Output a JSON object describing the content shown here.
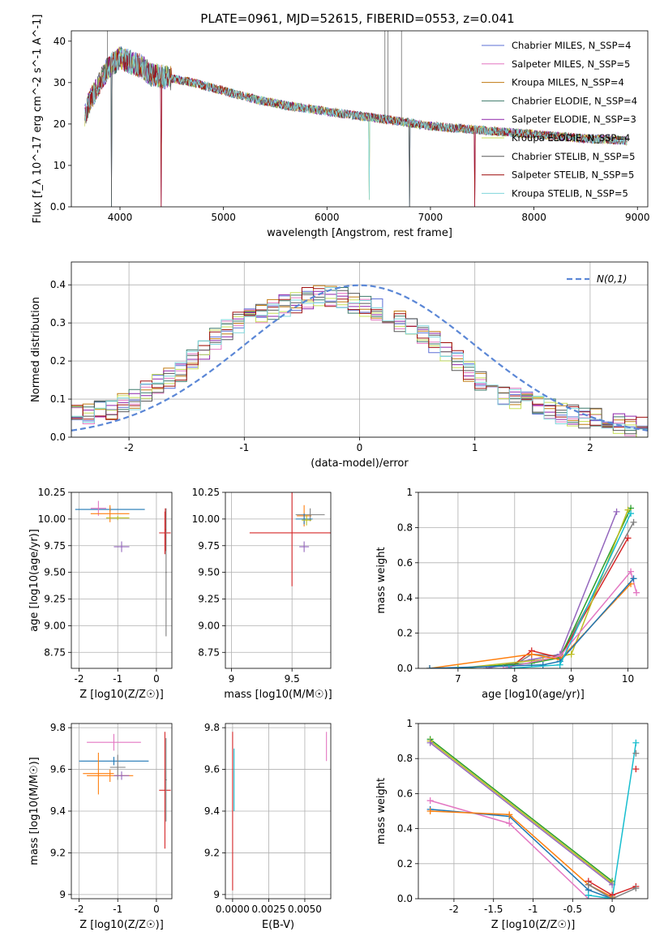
{
  "figure": {
    "title": "PLATE=0961, MJD=52615, FIBERID=0553, z=0.041"
  },
  "colors": {
    "chabrier_miles": "#5b6fd6",
    "salpeter_miles": "#e377c2",
    "kroupa_miles": "#c07a10",
    "chabrier_elodie": "#3d7a6a",
    "salpeter_elodie": "#8e24aa",
    "kroupa_elodie": "#c8e05a",
    "chabrier_stelib": "#595959",
    "salpeter_stelib": "#a01010",
    "kroupa_stelib": "#7fd6dc",
    "normal_curve": "#5b87d6",
    "m_blue": "#1f77b4",
    "m_orange": "#ff7f0e",
    "m_green": "#2ca02c",
    "m_red": "#d62728",
    "m_purple": "#9467bd",
    "m_pink": "#e377c2",
    "m_gray": "#7f7f7f",
    "m_olive": "#bcbd22",
    "m_cyan": "#17becf"
  },
  "chart_data": [
    {
      "id": "spectrum",
      "type": "line",
      "title": "PLATE=0961, MJD=52615, FIBERID=0553, z=0.041",
      "xlabel": "wavelength [Angstrom, rest frame]",
      "ylabel": "Flux [f_λ 10^-17 erg cm^-2 s^-1 A^-1]",
      "xlim": [
        3530,
        9100
      ],
      "ylim": [
        0,
        42.5
      ],
      "xticks": [
        4000,
        5000,
        6000,
        7000,
        8000,
        9000
      ],
      "yticks": [
        0,
        10,
        20,
        30,
        40
      ],
      "legend_position": "top-right",
      "legend": [
        "Chabrier MILES, N_SSP=4",
        "Salpeter MILES, N_SSP=5",
        "Kroupa MILES, N_SSP=4",
        "Chabrier ELODIE, N_SSP=4",
        "Salpeter ELODIE, N_SSP=3",
        "Kroupa ELODIE, N_SSP=4",
        "Chabrier STELIB, N_SSP=5",
        "Salpeter STELIB, N_SSP=5",
        "Kroupa STELIB, N_SSP=5"
      ],
      "continuum": [
        [
          3660,
          22
        ],
        [
          3700,
          25
        ],
        [
          3800,
          30
        ],
        [
          3900,
          34
        ],
        [
          4000,
          36
        ],
        [
          4100,
          35
        ],
        [
          4200,
          34
        ],
        [
          4300,
          32
        ],
        [
          4500,
          31
        ],
        [
          4700,
          30
        ],
        [
          5000,
          28
        ],
        [
          5300,
          26
        ],
        [
          5600,
          24.5
        ],
        [
          6000,
          23
        ],
        [
          6300,
          22
        ],
        [
          6600,
          21
        ],
        [
          7000,
          19.5
        ],
        [
          7500,
          18.5
        ],
        [
          8000,
          17.5
        ],
        [
          8500,
          16.5
        ],
        [
          8900,
          16
        ]
      ],
      "dropouts": [
        [
          3920,
          0
        ],
        [
          4400,
          0
        ],
        [
          6410,
          1.7
        ],
        [
          6800,
          0
        ],
        [
          7430,
          0
        ]
      ],
      "spikes": [
        [
          6560,
          42.5
        ],
        [
          6590,
          42.5
        ],
        [
          6720,
          42.5
        ],
        [
          3880,
          42.5
        ]
      ],
      "grid": false
    },
    {
      "id": "residuals",
      "type": "line",
      "xlabel": "(data-model)/error",
      "ylabel": "Normed distribution",
      "xlim": [
        -2.5,
        2.5
      ],
      "ylim": [
        0,
        0.46
      ],
      "xticks": [
        -2,
        -1,
        0,
        1,
        2
      ],
      "yticks": [
        0.0,
        0.1,
        0.2,
        0.3,
        0.4
      ],
      "legend_position": "top-right",
      "legend": [
        "N(0,1)"
      ],
      "normal_curve": {
        "mean": 0,
        "sigma": 1
      },
      "histogram_envelope": [
        [
          -2.5,
          0.06
        ],
        [
          -2.2,
          0.07
        ],
        [
          -2.0,
          0.09
        ],
        [
          -1.8,
          0.13
        ],
        [
          -1.6,
          0.16
        ],
        [
          -1.4,
          0.22
        ],
        [
          -1.2,
          0.27
        ],
        [
          -1.0,
          0.31
        ],
        [
          -0.8,
          0.33
        ],
        [
          -0.6,
          0.35
        ],
        [
          -0.4,
          0.37
        ],
        [
          -0.2,
          0.37
        ],
        [
          0.0,
          0.35
        ],
        [
          0.2,
          0.33
        ],
        [
          0.4,
          0.3
        ],
        [
          0.6,
          0.26
        ],
        [
          0.8,
          0.21
        ],
        [
          1.0,
          0.16
        ],
        [
          1.2,
          0.12
        ],
        [
          1.4,
          0.1
        ],
        [
          1.6,
          0.08
        ],
        [
          1.8,
          0.06
        ],
        [
          2.0,
          0.05
        ],
        [
          2.2,
          0.04
        ],
        [
          2.5,
          0.02
        ]
      ],
      "grid": true
    },
    {
      "id": "age_vs_Z",
      "type": "scatter",
      "xlabel": "Z [log10(Z/Z☉)]",
      "ylabel": "age [log10(age/yr)]",
      "xlim": [
        -2.2,
        0.4
      ],
      "ylim": [
        8.6,
        10.25
      ],
      "xticks": [
        -2,
        -1,
        0
      ],
      "yticks": [
        8.75,
        9.0,
        9.25,
        9.5,
        9.75,
        10.0,
        10.25
      ],
      "points": [
        {
          "x": -1.2,
          "y": 10.09,
          "xerr": 0.9,
          "yerr": 0.02,
          "color": "m_blue"
        },
        {
          "x": -1.5,
          "y": 10.1,
          "xerr": 0.2,
          "yerr": 0.07,
          "color": "m_pink"
        },
        {
          "x": -1.2,
          "y": 10.05,
          "xerr": 0.5,
          "yerr": 0.08,
          "color": "m_orange"
        },
        {
          "x": -1.0,
          "y": 10.01,
          "xerr": 0.3,
          "yerr": 0.02,
          "color": "m_olive"
        },
        {
          "x": -0.9,
          "y": 9.74,
          "xerr": 0.2,
          "yerr": 0.05,
          "color": "m_purple"
        },
        {
          "x": 0.22,
          "y": 9.87,
          "xerr": 0.15,
          "yerr": 0.2,
          "color": "m_red"
        },
        {
          "x": 0.25,
          "y": 9.5,
          "xerr": 0.02,
          "yerr": 0.6,
          "color": "m_gray"
        },
        {
          "x": 0.23,
          "y": 9.9,
          "xerr": 0.02,
          "yerr": 0.2,
          "color": "m_red"
        }
      ],
      "grid": true
    },
    {
      "id": "age_vs_mass",
      "type": "scatter",
      "xlabel": "mass [log10(M/M☉)]",
      "ylabel": "",
      "xlim": [
        8.95,
        9.82
      ],
      "ylim": [
        8.6,
        10.25
      ],
      "xticks": [
        9.0,
        9.5
      ],
      "yticks": [
        8.75,
        9.0,
        9.25,
        9.5,
        9.75,
        10.0,
        10.25
      ],
      "points": [
        {
          "x": 9.5,
          "y": 9.87,
          "xerr": 0.35,
          "yerr": 0.5,
          "color": "m_red"
        },
        {
          "x": 9.6,
          "y": 10.03,
          "xerr": 0.06,
          "yerr": 0.1,
          "color": "m_orange"
        },
        {
          "x": 9.65,
          "y": 10.04,
          "xerr": 0.12,
          "yerr": 0.06,
          "color": "m_gray"
        },
        {
          "x": 9.6,
          "y": 10.0,
          "xerr": 0.07,
          "yerr": 0.05,
          "color": "m_blue"
        },
        {
          "x": 9.6,
          "y": 9.74,
          "xerr": 0.04,
          "yerr": 0.05,
          "color": "m_purple"
        },
        {
          "x": 9.62,
          "y": 9.99,
          "xerr": 0.04,
          "yerr": 0.05,
          "color": "m_olive"
        }
      ],
      "grid": true
    },
    {
      "id": "massweight_vs_age",
      "type": "line",
      "xlabel": "age [log10(age/yr)]",
      "ylabel": "mass weight",
      "xlim": [
        6.3,
        10.35
      ],
      "ylim": [
        0,
        1.0
      ],
      "xticks": [
        7,
        8,
        9,
        10
      ],
      "yticks": [
        0.0,
        0.2,
        0.4,
        0.6,
        0.8,
        1.0
      ],
      "series": [
        {
          "color": "m_purple",
          "x": [
            7.5,
            8.3,
            8.8,
            9.8
          ],
          "y": [
            0.0,
            0.05,
            0.08,
            0.89
          ]
        },
        {
          "color": "m_gray",
          "x": [
            7.9,
            8.3,
            8.8,
            10.1
          ],
          "y": [
            0.0,
            0.08,
            0.07,
            0.83
          ]
        },
        {
          "color": "m_red",
          "x": [
            7.9,
            8.3,
            8.8,
            10.0
          ],
          "y": [
            0.0,
            0.1,
            0.06,
            0.74
          ]
        },
        {
          "color": "m_green",
          "x": [
            7.0,
            8.3,
            8.8,
            10.05
          ],
          "y": [
            0.0,
            0.03,
            0.06,
            0.91
          ]
        },
        {
          "color": "m_olive",
          "x": [
            7.0,
            8.5,
            9.0,
            10.0
          ],
          "y": [
            0.0,
            0.05,
            0.08,
            0.9
          ]
        },
        {
          "color": "m_pink",
          "x": [
            7.8,
            8.8,
            10.05,
            10.15
          ],
          "y": [
            0.0,
            0.07,
            0.55,
            0.43
          ]
        },
        {
          "color": "m_orange",
          "x": [
            6.5,
            8.3,
            8.8,
            10.05
          ],
          "y": [
            0.0,
            0.08,
            0.05,
            0.48
          ]
        },
        {
          "color": "m_blue",
          "x": [
            6.5,
            8.5,
            8.8,
            10.1
          ],
          "y": [
            0.0,
            0.02,
            0.04,
            0.51
          ]
        },
        {
          "color": "m_cyan",
          "x": [
            7.9,
            8.8,
            10.05
          ],
          "y": [
            0.0,
            0.02,
            0.88
          ]
        }
      ],
      "grid": true
    },
    {
      "id": "mass_vs_Z",
      "type": "scatter",
      "xlabel": "Z [log10(Z/Z☉)]",
      "ylabel": "mass [log10(M/M☉)]",
      "xlim": [
        -2.2,
        0.4
      ],
      "ylim": [
        8.98,
        9.82
      ],
      "xticks": [
        -2,
        -1,
        0
      ],
      "yticks": [
        9.0,
        9.2,
        9.4,
        9.6,
        9.8
      ],
      "points": [
        {
          "x": -1.1,
          "y": 9.64,
          "xerr": 0.9,
          "yerr": 0.02,
          "color": "m_blue"
        },
        {
          "x": -1.1,
          "y": 9.73,
          "xerr": 0.7,
          "yerr": 0.04,
          "color": "m_pink"
        },
        {
          "x": -1.5,
          "y": 9.58,
          "xerr": 0.4,
          "yerr": 0.1,
          "color": "m_orange"
        },
        {
          "x": -1.2,
          "y": 9.57,
          "xerr": 0.6,
          "yerr": 0.03,
          "color": "m_orange"
        },
        {
          "x": -1.0,
          "y": 9.61,
          "xerr": 0.2,
          "yerr": 0.06,
          "color": "m_gray"
        },
        {
          "x": -0.9,
          "y": 9.57,
          "xerr": 0.2,
          "yerr": 0.02,
          "color": "m_purple"
        },
        {
          "x": 0.22,
          "y": 9.5,
          "xerr": 0.15,
          "yerr": 0.28,
          "color": "m_red"
        },
        {
          "x": 0.25,
          "y": 9.55,
          "xerr": 0.02,
          "yerr": 0.2,
          "color": "m_gray"
        }
      ],
      "grid": true
    },
    {
      "id": "mass_vs_ebv",
      "type": "scatter",
      "xlabel": "E(B-V)",
      "ylabel": "",
      "xlim": [
        -0.0005,
        0.0068
      ],
      "ylim": [
        8.98,
        9.82
      ],
      "xticks": [
        0.0,
        0.0025,
        0.005
      ],
      "xtick_labels": [
        "0.0000",
        "0.0025",
        "0.0050"
      ],
      "yticks": [
        9.0,
        9.2,
        9.4,
        9.6,
        9.8
      ],
      "points": [
        {
          "x": 0.0,
          "y": 9.4,
          "xerr": 0,
          "yerr": 0.38,
          "color": "m_red"
        },
        {
          "x": 0.0001,
          "y": 9.55,
          "xerr": 0,
          "yerr": 0.15,
          "color": "m_cyan"
        },
        {
          "x": 0.0065,
          "y": 9.71,
          "xerr": 0,
          "yerr": 0.07,
          "color": "m_pink"
        }
      ],
      "grid": true
    },
    {
      "id": "massweight_vs_Z",
      "type": "line",
      "xlabel": "Z [log10(Z/Z☉)]",
      "ylabel": "mass weight",
      "xlim": [
        -2.45,
        0.45
      ],
      "ylim": [
        0,
        1.0
      ],
      "xticks": [
        -2.0,
        -1.5,
        -1.0,
        -0.5,
        0.0
      ],
      "yticks": [
        0.0,
        0.2,
        0.4,
        0.6,
        0.8,
        1.0
      ],
      "series": [
        {
          "color": "m_green",
          "x": [
            -2.3,
            0.0
          ],
          "y": [
            0.91,
            0.1
          ]
        },
        {
          "color": "m_olive",
          "x": [
            -2.3,
            0.0
          ],
          "y": [
            0.9,
            0.09
          ]
        },
        {
          "color": "m_purple",
          "x": [
            -2.3,
            0.0
          ],
          "y": [
            0.89,
            0.08
          ]
        },
        {
          "color": "m_pink",
          "x": [
            -2.3,
            -1.3,
            -0.3,
            0.0
          ],
          "y": [
            0.56,
            0.43,
            0.0,
            0.0
          ]
        },
        {
          "color": "m_blue",
          "x": [
            -2.3,
            -1.3,
            -0.3,
            0.0
          ],
          "y": [
            0.51,
            0.47,
            0.05,
            0.0
          ]
        },
        {
          "color": "m_orange",
          "x": [
            -2.3,
            -1.3,
            -0.3,
            0.0
          ],
          "y": [
            0.5,
            0.48,
            0.08,
            0.01
          ]
        },
        {
          "color": "m_cyan",
          "x": [
            -0.3,
            0.0,
            0.3
          ],
          "y": [
            0.02,
            0.0,
            0.89
          ]
        },
        {
          "color": "m_red",
          "x": [
            -0.3,
            0.0,
            0.3
          ],
          "y": [
            0.1,
            0.02,
            0.07
          ]
        },
        {
          "color": "m_gray",
          "x": [
            -0.3,
            0.0,
            0.3
          ],
          "y": [
            0.08,
            0.0,
            0.06
          ]
        }
      ],
      "markers_only": [
        {
          "color": "m_gray",
          "x": 0.3,
          "y": 0.83
        },
        {
          "color": "m_red",
          "x": 0.3,
          "y": 0.74
        }
      ],
      "grid": true
    }
  ]
}
